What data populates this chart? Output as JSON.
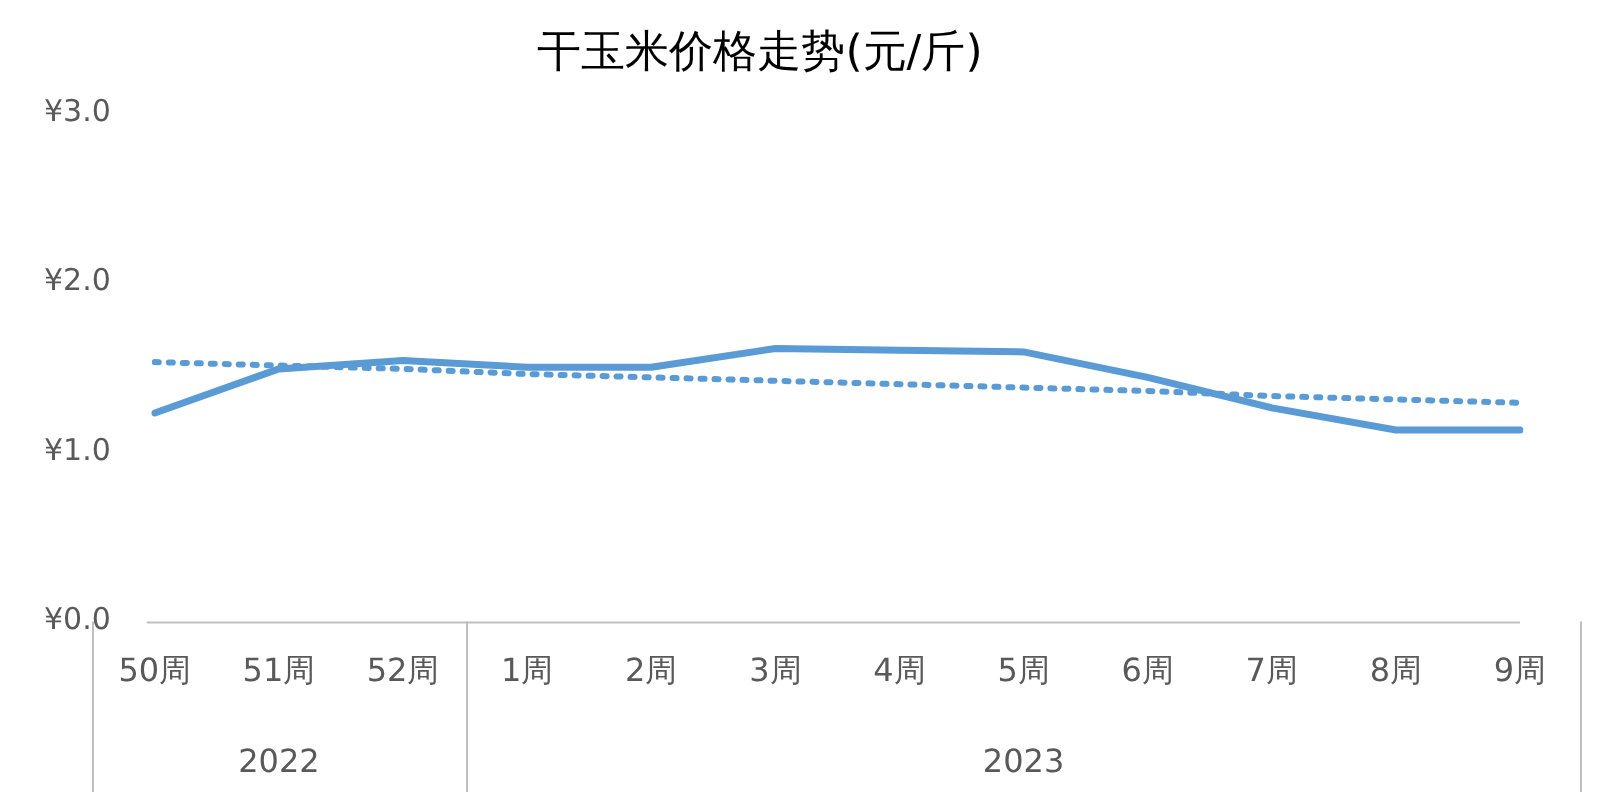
{
  "chart_data": {
    "type": "line",
    "title": "干玉米价格走势(元/斤)",
    "categories": [
      "50周",
      "51周",
      "52周",
      "1周",
      "2周",
      "3周",
      "4周",
      "5周",
      "6周",
      "7周",
      "8周",
      "9周"
    ],
    "series": [
      {
        "color": "#5b9bd5",
        "values": [
          1.23,
          1.49,
          1.54,
          1.5,
          1.5,
          1.61,
          1.6,
          1.59,
          1.44,
          1.26,
          1.13,
          1.13
        ]
      },
      {
        "type": "line",
        "color": "#5b9bd5",
        "line_style": "dotted",
        "values": [
          1.53,
          1.51,
          1.49,
          1.46,
          1.44,
          1.42,
          1.4,
          1.38,
          1.36,
          1.33,
          1.31,
          1.29
        ]
      }
    ],
    "ylim": [
      0,
      3
    ],
    "yticks": [
      {
        "value": 0,
        "label": "¥0.0"
      },
      {
        "value": 1,
        "label": "¥1.0"
      },
      {
        "value": 2,
        "label": "¥2.0"
      },
      {
        "value": 3,
        "label": "¥3.0"
      }
    ],
    "annotations": [
      "2022",
      "2023"
    ],
    "grid": false,
    "legend": false,
    "marker": "none",
    "line_style": "solid"
  }
}
